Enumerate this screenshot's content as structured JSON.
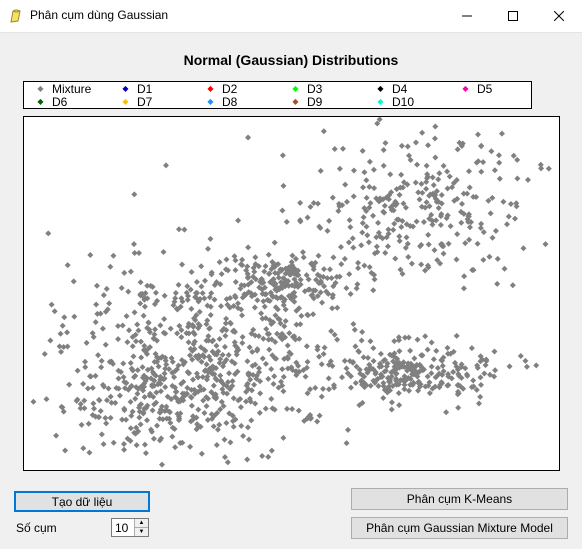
{
  "window": {
    "title": "Phân cụm dùng Gaussian",
    "minimize_icon": "minimize-icon",
    "maximize_icon": "maximize-icon",
    "close_icon": "close-icon"
  },
  "chart_data": {
    "type": "scatter",
    "title": "Normal (Gaussian) Distributions",
    "legend_placement": "top",
    "series": [
      {
        "name": "Mixture",
        "color": "#808080",
        "note_shown": "gray diamond points"
      },
      {
        "name": "D1",
        "color": "#0000c0"
      },
      {
        "name": "D2",
        "color": "#ff0000"
      },
      {
        "name": "D3",
        "color": "#00ff00"
      },
      {
        "name": "D4",
        "color": "#000000"
      },
      {
        "name": "D5",
        "color": "#ff00aa"
      },
      {
        "name": "D6",
        "color": "#006400"
      },
      {
        "name": "D7",
        "color": "#ffc000"
      },
      {
        "name": "D8",
        "color": "#1e90ff"
      },
      {
        "name": "D9",
        "color": "#a0522d"
      },
      {
        "name": "D10",
        "color": "#00ffcc"
      }
    ],
    "clusters": [
      {
        "cx": 0.34,
        "cy": 0.66,
        "sx": 0.13,
        "sy": 0.13,
        "n": 600
      },
      {
        "cx": 0.48,
        "cy": 0.47,
        "sx": 0.06,
        "sy": 0.04,
        "n": 170
      },
      {
        "cx": 0.73,
        "cy": 0.25,
        "sx": 0.11,
        "sy": 0.11,
        "n": 300
      },
      {
        "cx": 0.72,
        "cy": 0.72,
        "sx": 0.08,
        "sy": 0.04,
        "n": 260
      },
      {
        "cx": 0.22,
        "cy": 0.82,
        "sx": 0.09,
        "sy": 0.07,
        "n": 150
      }
    ],
    "grid": false,
    "xlim": [
      0,
      1
    ],
    "ylim": [
      0,
      1
    ]
  },
  "controls": {
    "generate_label": "Tạo dữ liệu",
    "kmeans_label": "Phân cụm K-Means",
    "gmm_label": "Phân cụm Gaussian Mixture Model",
    "clusters_label": "Số cụm",
    "clusters_value": "10"
  }
}
